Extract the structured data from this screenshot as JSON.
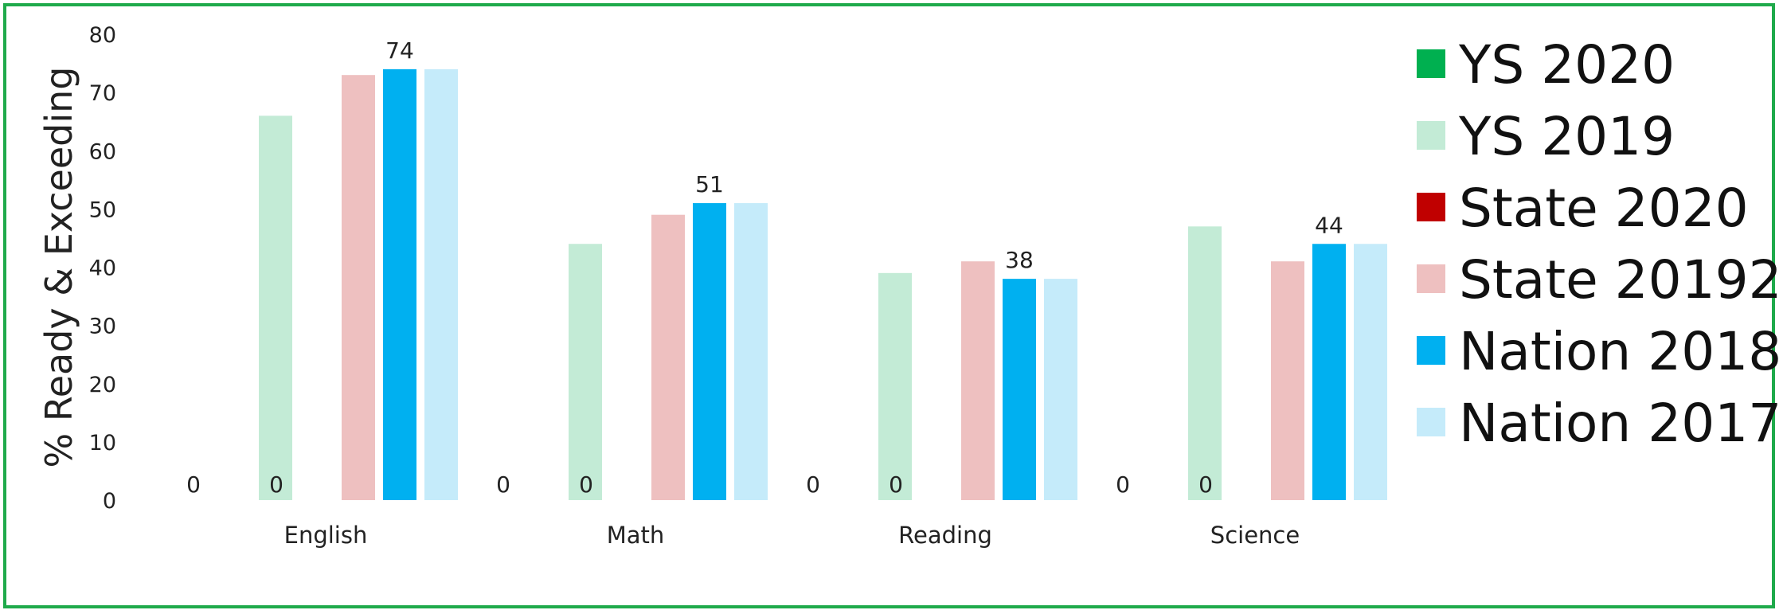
{
  "chart_data": {
    "type": "bar",
    "title": "",
    "xlabel": "",
    "ylabel": "% Ready & Exceeding",
    "ylim": [
      0,
      80
    ],
    "yticks": [
      0,
      10,
      20,
      30,
      40,
      50,
      60,
      70,
      80
    ],
    "grid": false,
    "legend_position": "right",
    "categories": [
      "English",
      "Math",
      "Reading",
      "Science"
    ],
    "series": [
      {
        "name": "YS 2020",
        "color": "#00b050",
        "values": [
          0,
          0,
          0,
          0
        ],
        "labels": [
          "0",
          "0",
          "0",
          "0"
        ]
      },
      {
        "name": "YS 2019",
        "color": "#c3ebd6",
        "values": [
          66,
          44,
          39,
          47
        ],
        "labels": [
          "",
          "",
          "",
          ""
        ]
      },
      {
        "name": "State 2020",
        "color": "#c00000",
        "values": [
          0,
          0,
          0,
          0
        ],
        "labels": [
          "0",
          "0",
          "0",
          "0"
        ]
      },
      {
        "name": "State 20192",
        "color": "#eec0c0",
        "values": [
          73,
          49,
          41,
          41
        ],
        "labels": [
          "",
          "",
          "",
          ""
        ]
      },
      {
        "name": "Nation 2018",
        "color": "#00b0f0",
        "values": [
          74,
          51,
          38,
          44
        ],
        "labels": [
          "74",
          "51",
          "38",
          "44"
        ]
      },
      {
        "name": "Nation 2017",
        "color": "#c5ebfa",
        "values": [
          74,
          51,
          38,
          44
        ],
        "labels": [
          "",
          "",
          "",
          ""
        ]
      }
    ]
  }
}
